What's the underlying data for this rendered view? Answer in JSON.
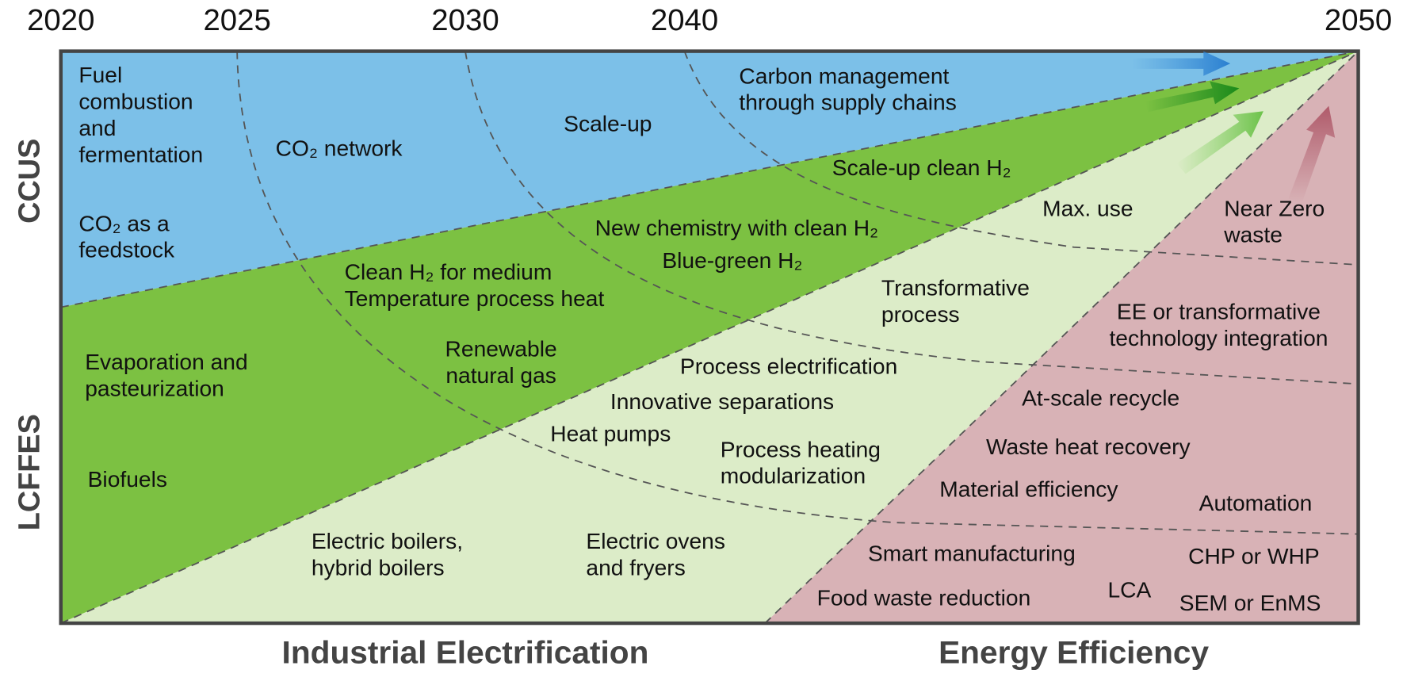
{
  "years": [
    "2020",
    "2025",
    "2030",
    "2040",
    "2050"
  ],
  "side_labels": [
    "CCUS",
    "LCFFES"
  ],
  "bottom_labels": [
    "Industrial Electrification",
    "Energy Efficiency"
  ],
  "items": [
    {
      "lines": [
        "Fuel",
        "combustion",
        "and",
        "fermentation"
      ]
    },
    {
      "lines": [
        "CO₂ network"
      ]
    },
    {
      "lines": [
        "Scale-up"
      ]
    },
    {
      "lines": [
        "Carbon management",
        "through supply chains"
      ]
    },
    {
      "lines": [
        "CO₂ as a",
        "feedstock"
      ]
    },
    {
      "lines": [
        "Scale-up clean H₂"
      ]
    },
    {
      "lines": [
        "New chemistry with clean H₂"
      ]
    },
    {
      "lines": [
        "Blue-green H₂"
      ]
    },
    {
      "lines": [
        "Clean H₂ for medium",
        "Temperature process heat"
      ]
    },
    {
      "lines": [
        "Max. use"
      ]
    },
    {
      "lines": [
        "Near Zero",
        "waste"
      ]
    },
    {
      "lines": [
        "Transformative",
        "process"
      ]
    },
    {
      "lines": [
        "EE or transformative",
        "technology integration"
      ]
    },
    {
      "lines": [
        "Evaporation and",
        "pasteurization"
      ]
    },
    {
      "lines": [
        "Renewable",
        "natural gas"
      ]
    },
    {
      "lines": [
        "Process electrification"
      ]
    },
    {
      "lines": [
        "Innovative separations"
      ]
    },
    {
      "lines": [
        "At-scale recycle"
      ]
    },
    {
      "lines": [
        "Heat pumps"
      ]
    },
    {
      "lines": [
        "Process heating",
        "modularization"
      ]
    },
    {
      "lines": [
        "Waste heat recovery"
      ]
    },
    {
      "lines": [
        "Biofuels"
      ]
    },
    {
      "lines": [
        "Material efficiency"
      ]
    },
    {
      "lines": [
        "Automation"
      ]
    },
    {
      "lines": [
        "Electric boilers,",
        "hybrid boilers"
      ]
    },
    {
      "lines": [
        "Electric ovens",
        "and fryers"
      ]
    },
    {
      "lines": [
        "Smart manufacturing"
      ]
    },
    {
      "lines": [
        "CHP or WHP"
      ]
    },
    {
      "lines": [
        "Food waste reduction"
      ]
    },
    {
      "lines": [
        "LCA"
      ]
    },
    {
      "lines": [
        "SEM or EnMS"
      ]
    }
  ]
}
